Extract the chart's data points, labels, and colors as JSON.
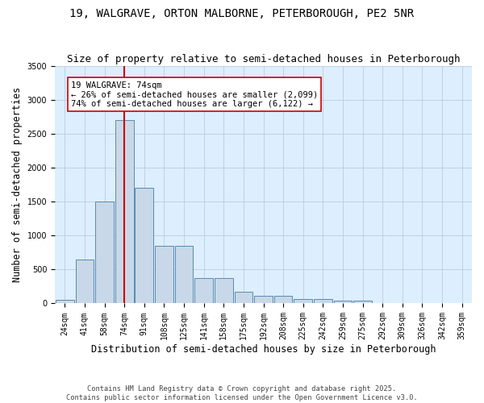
{
  "title_line1": "19, WALGRAVE, ORTON MALBORNE, PETERBOROUGH, PE2 5NR",
  "title_line2": "Size of property relative to semi-detached houses in Peterborough",
  "xlabel": "Distribution of semi-detached houses by size in Peterborough",
  "ylabel": "Number of semi-detached properties",
  "categories": [
    "24sqm",
    "41sqm",
    "58sqm",
    "74sqm",
    "91sqm",
    "108sqm",
    "125sqm",
    "141sqm",
    "158sqm",
    "175sqm",
    "192sqm",
    "208sqm",
    "225sqm",
    "242sqm",
    "259sqm",
    "275sqm",
    "292sqm",
    "309sqm",
    "326sqm",
    "342sqm",
    "359sqm"
  ],
  "values": [
    50,
    650,
    1500,
    2700,
    1700,
    850,
    850,
    380,
    380,
    170,
    110,
    110,
    70,
    70,
    40,
    40,
    10,
    10,
    5,
    3,
    0
  ],
  "bar_color": "#c8d8e8",
  "bar_edge_color": "#5a8ab0",
  "vline_x_index": 3,
  "vline_color": "#cc0000",
  "annotation_text": "19 WALGRAVE: 74sqm\n← 26% of semi-detached houses are smaller (2,099)\n74% of semi-detached houses are larger (6,122) →",
  "annotation_box_color": "#ffffff",
  "annotation_box_edge": "#cc0000",
  "ylim": [
    0,
    3500
  ],
  "yticks": [
    0,
    500,
    1000,
    1500,
    2000,
    2500,
    3000,
    3500
  ],
  "background_color": "#ddeeff",
  "footer_text": "Contains HM Land Registry data © Crown copyright and database right 2025.\nContains public sector information licensed under the Open Government Licence v3.0.",
  "title_fontsize": 10,
  "subtitle_fontsize": 9,
  "axis_label_fontsize": 8.5,
  "tick_fontsize": 7,
  "annot_fontsize": 7.5
}
